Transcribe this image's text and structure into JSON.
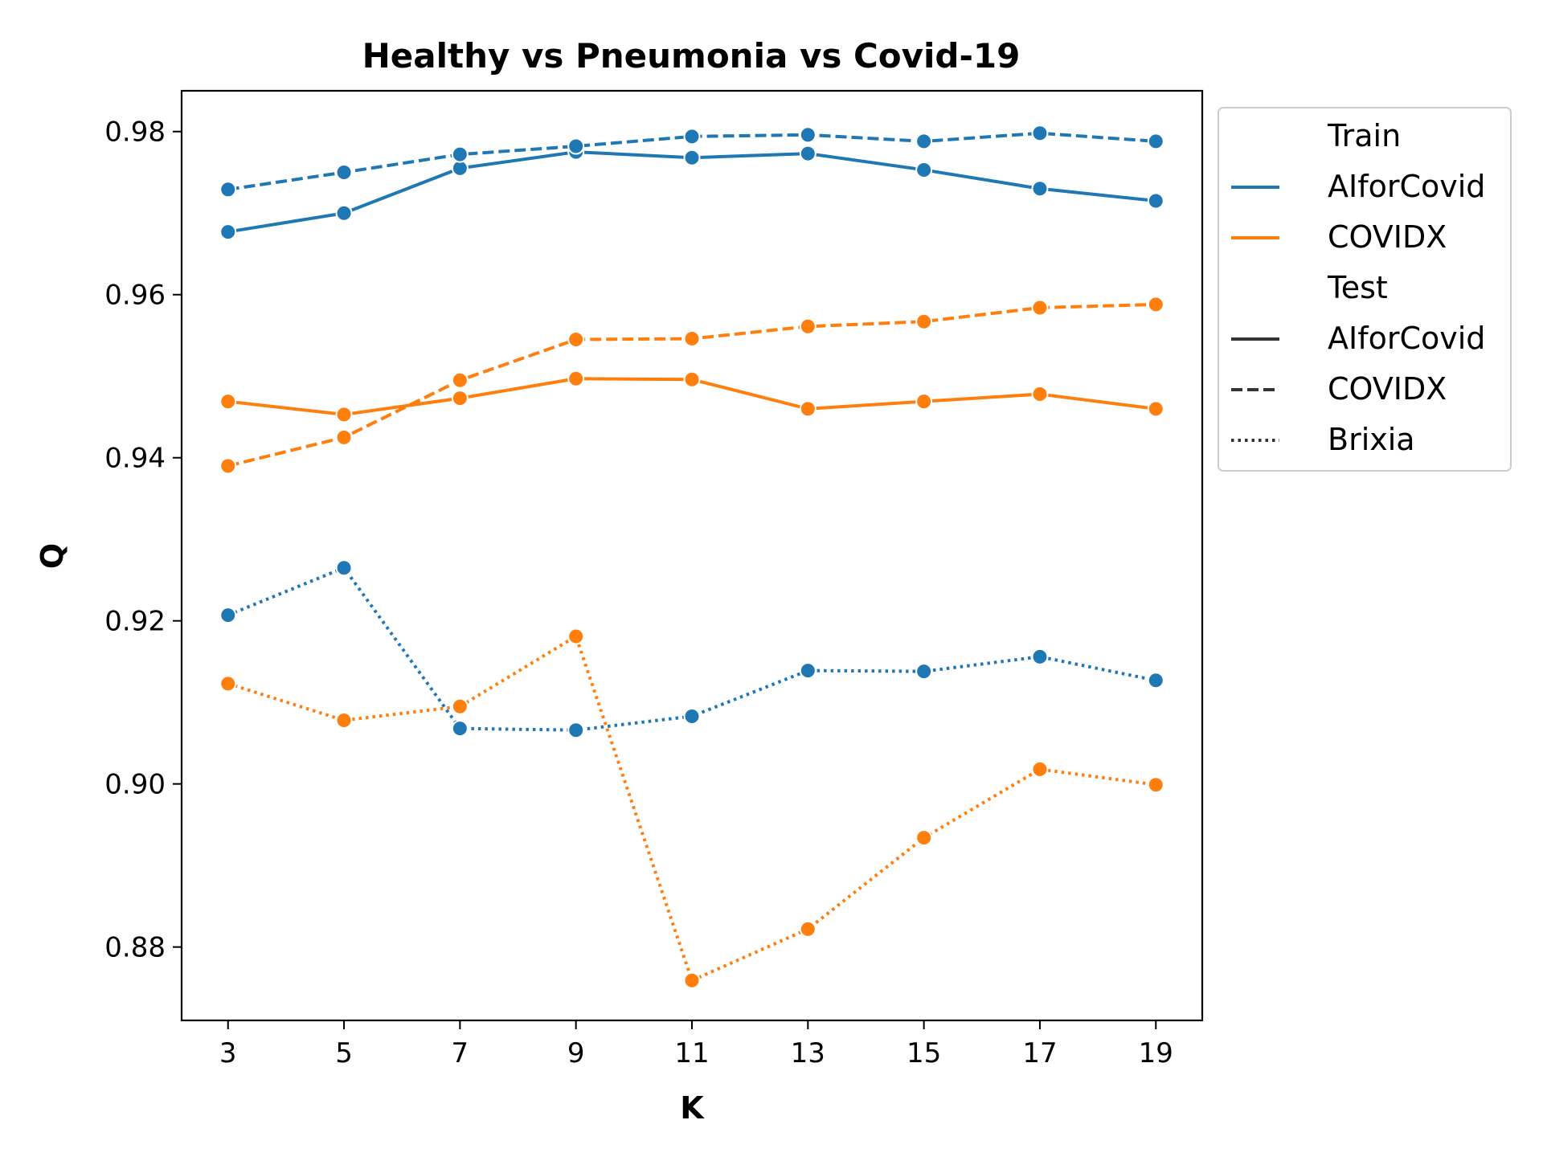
{
  "chart_data": {
    "type": "line",
    "title": "Healthy vs Pneumonia vs Covid-19",
    "xlabel": "K",
    "ylabel": "Q",
    "x": [
      3,
      5,
      7,
      9,
      11,
      13,
      15,
      17,
      19
    ],
    "xticks": [
      "3",
      "5",
      "7",
      "9",
      "11",
      "13",
      "15",
      "17",
      "19"
    ],
    "yticks": [
      "0.88",
      "0.90",
      "0.92",
      "0.94",
      "0.96",
      "0.98"
    ],
    "ylim": [
      0.871,
      0.985
    ],
    "grid": false,
    "legend_position": "outside-right",
    "legend": {
      "train_heading": "Train",
      "train_entries": [
        "AIforCovid",
        "COVIDX"
      ],
      "test_heading": "Test",
      "test_entries": [
        "AIforCovid",
        "COVIDX",
        "Brixia"
      ]
    },
    "colors": {
      "AIforCovid": "#1f77b4",
      "COVIDX": "#ff7f0e"
    },
    "series": [
      {
        "train": "AIforCovid",
        "test": "AIforCovid",
        "style": "solid",
        "values": [
          0.9677,
          0.97,
          0.9755,
          0.9775,
          0.9768,
          0.9773,
          0.9753,
          0.973,
          0.9715
        ]
      },
      {
        "train": "AIforCovid",
        "test": "COVIDX",
        "style": "dashed",
        "values": [
          0.9729,
          0.975,
          0.9772,
          0.9782,
          0.9794,
          0.9796,
          0.9788,
          0.9798,
          0.9788
        ]
      },
      {
        "train": "AIforCovid",
        "test": "Brixia",
        "style": "dotted",
        "values": [
          0.9207,
          0.9265,
          0.9068,
          0.9066,
          0.9083,
          0.9139,
          0.9138,
          0.9156,
          0.9127
        ]
      },
      {
        "train": "COVIDX",
        "test": "AIforCovid",
        "style": "solid",
        "values": [
          0.9469,
          0.9453,
          0.9473,
          0.9497,
          0.9496,
          0.946,
          0.9469,
          0.9478,
          0.946
        ]
      },
      {
        "train": "COVIDX",
        "test": "COVIDX",
        "style": "dashed",
        "values": [
          0.939,
          0.9425,
          0.9495,
          0.9545,
          0.9546,
          0.9561,
          0.9567,
          0.9584,
          0.9588
        ]
      },
      {
        "train": "COVIDX",
        "test": "Brixia",
        "style": "dotted",
        "values": [
          0.9123,
          0.9078,
          0.9095,
          0.9181,
          0.8759,
          0.8822,
          0.8934,
          0.9018,
          0.8999
        ]
      }
    ]
  }
}
